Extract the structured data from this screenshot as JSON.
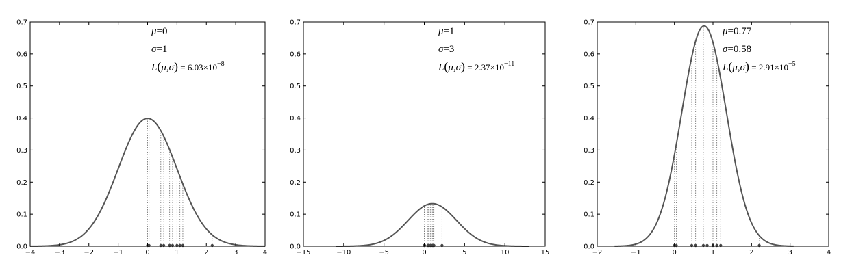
{
  "chart_data": [
    {
      "type": "line",
      "mu": 0,
      "sigma": 1,
      "xlim": [
        -4,
        4
      ],
      "ylim": [
        0,
        0.7
      ],
      "xticks": [
        -4,
        -3,
        -2,
        -1,
        0,
        1,
        2,
        3,
        4
      ],
      "yticks": [
        0.0,
        0.1,
        0.2,
        0.3,
        0.4,
        0.5,
        0.6,
        0.7
      ],
      "xtick_labels": [
        "−4",
        "−3",
        "−2",
        "−1",
        "0",
        "1",
        "2",
        "3",
        "4"
      ],
      "ytick_labels": [
        "0.0",
        "0.1",
        "0.2",
        "0.3",
        "0.4",
        "0.5",
        "0.6",
        "0.7"
      ],
      "curve_range": [
        -4,
        4
      ],
      "samples": [
        0.0,
        0.05,
        0.45,
        0.55,
        0.75,
        0.85,
        1.0,
        1.1,
        1.2,
        2.2
      ],
      "annotation": {
        "mu": "0",
        "sigma": "1",
        "L_mantissa": "6.03",
        "L_exponent": "−8"
      }
    },
    {
      "type": "line",
      "mu": 1,
      "sigma": 3,
      "xlim": [
        -15,
        15
      ],
      "ylim": [
        0,
        0.7
      ],
      "xticks": [
        -15,
        -10,
        -5,
        0,
        5,
        10,
        15
      ],
      "yticks": [
        0.0,
        0.1,
        0.2,
        0.3,
        0.4,
        0.5,
        0.6,
        0.7
      ],
      "xtick_labels": [
        "−15",
        "−10",
        "−5",
        "0",
        "5",
        "10",
        "15"
      ],
      "ytick_labels": [
        "0.0",
        "0.1",
        "0.2",
        "0.3",
        "0.4",
        "0.5",
        "0.6",
        "0.7"
      ],
      "curve_range": [
        -11,
        13
      ],
      "samples": [
        0.0,
        0.05,
        0.45,
        0.55,
        0.75,
        0.85,
        1.0,
        1.1,
        1.2,
        2.2
      ],
      "annotation": {
        "mu": "1",
        "sigma": "3",
        "L_mantissa": "2.37",
        "L_exponent": "−11"
      }
    },
    {
      "type": "line",
      "mu": 0.77,
      "sigma": 0.58,
      "xlim": [
        -2,
        4
      ],
      "ylim": [
        0,
        0.7
      ],
      "xticks": [
        -2,
        -1,
        0,
        1,
        2,
        3,
        4
      ],
      "yticks": [
        0.0,
        0.1,
        0.2,
        0.3,
        0.4,
        0.5,
        0.6,
        0.7
      ],
      "xtick_labels": [
        "−2",
        "−1",
        "0",
        "1",
        "2",
        "3",
        "4"
      ],
      "ytick_labels": [
        "0.0",
        "0.1",
        "0.2",
        "0.3",
        "0.4",
        "0.5",
        "0.6",
        "0.7"
      ],
      "curve_range": [
        -1.55,
        3.09
      ],
      "samples": [
        0.0,
        0.05,
        0.45,
        0.55,
        0.75,
        0.85,
        1.0,
        1.1,
        1.2,
        2.2
      ],
      "annotation": {
        "mu": "0.77",
        "sigma": "0.58",
        "L_mantissa": "2.91",
        "L_exponent": "−5"
      }
    }
  ],
  "colors": {
    "curve": "#555555",
    "dotted": "#777777",
    "sample_marker": "#444444",
    "axis": "#000000"
  }
}
